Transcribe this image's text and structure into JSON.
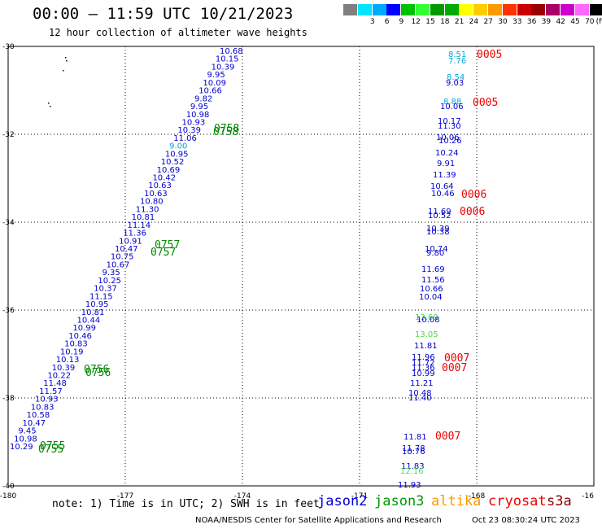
{
  "header": {
    "title": "00:00 – 11:59 UTC 10/21/2023",
    "subtitle": "12 hour collection of altimeter wave heights"
  },
  "legend": {
    "items": [
      {
        "label": "",
        "color": "#7f7f7f"
      },
      {
        "label": "3",
        "color": "#00e5ff"
      },
      {
        "label": "6",
        "color": "#00aaff"
      },
      {
        "label": "9",
        "color": "#0000ff"
      },
      {
        "label": "12",
        "color": "#00c000"
      },
      {
        "label": "15",
        "color": "#33ff33"
      },
      {
        "label": "18",
        "color": "#009900"
      },
      {
        "label": "21",
        "color": "#00aa00"
      },
      {
        "label": "24",
        "color": "#ffff00"
      },
      {
        "label": "27",
        "color": "#ffcc00"
      },
      {
        "label": "30",
        "color": "#ff9900"
      },
      {
        "label": "33",
        "color": "#ff3300"
      },
      {
        "label": "36",
        "color": "#cc0000"
      },
      {
        "label": "39",
        "color": "#990000"
      },
      {
        "label": "42",
        "color": "#aa0066"
      },
      {
        "label": "45",
        "color": "#cc00cc"
      },
      {
        "label": "70",
        "color": "#ff66ff"
      },
      {
        "label": "",
        "color": "#000000"
      }
    ],
    "unit": "(ft)"
  },
  "map": {
    "lon_range": [
      -180,
      -165
    ],
    "lat_range": [
      -40,
      -30
    ],
    "x_ticks": [
      "-180",
      "-177",
      "-174",
      "-171",
      "-168",
      "-16"
    ],
    "y_ticks": [
      "-30",
      "-32",
      "-34",
      "-36",
      "-38",
      "-40"
    ],
    "colors": {
      "blue": "#0000cc",
      "cyan": "#00aadd",
      "green": "#008800",
      "lightgreen": "#44dd44",
      "red": "#ee0000"
    },
    "track1": [
      {
        "v": "10.68",
        "c": "blue"
      },
      {
        "v": "10.15",
        "c": "blue"
      },
      {
        "v": "10.39",
        "c": "blue"
      },
      {
        "v": "9.95",
        "c": "blue"
      },
      {
        "v": "10.09",
        "c": "blue"
      },
      {
        "v": "10.66",
        "c": "blue"
      },
      {
        "v": "9.82",
        "c": "blue"
      },
      {
        "v": "9.95",
        "c": "blue"
      },
      {
        "v": "10.98",
        "c": "blue"
      },
      {
        "v": "10.93",
        "c": "blue"
      },
      {
        "v": "10.39",
        "c": "blue"
      },
      {
        "v": "11.06",
        "c": "blue"
      },
      {
        "v": "9.00",
        "c": "cyan"
      },
      {
        "v": "10.95",
        "c": "blue"
      },
      {
        "v": "10.52",
        "c": "blue"
      },
      {
        "v": "10.69",
        "c": "blue"
      },
      {
        "v": "10.42",
        "c": "blue"
      },
      {
        "v": "10.63",
        "c": "blue"
      },
      {
        "v": "10.63",
        "c": "blue"
      },
      {
        "v": "10.80",
        "c": "blue"
      },
      {
        "v": "11.30",
        "c": "blue"
      },
      {
        "v": "10.81",
        "c": "blue"
      },
      {
        "v": "11.14",
        "c": "blue"
      },
      {
        "v": "11.36",
        "c": "blue"
      },
      {
        "v": "10.91",
        "c": "blue"
      },
      {
        "v": "10.47",
        "c": "blue"
      },
      {
        "v": "10.75",
        "c": "blue"
      },
      {
        "v": "10.67",
        "c": "blue"
      },
      {
        "v": "9.35",
        "c": "blue"
      },
      {
        "v": "10.25",
        "c": "blue"
      },
      {
        "v": "10.37",
        "c": "blue"
      },
      {
        "v": "11.15",
        "c": "blue"
      },
      {
        "v": "10.95",
        "c": "blue"
      },
      {
        "v": "10.81",
        "c": "blue"
      },
      {
        "v": "10.44",
        "c": "blue"
      },
      {
        "v": "10.99",
        "c": "blue"
      },
      {
        "v": "10.46",
        "c": "blue"
      },
      {
        "v": "10.83",
        "c": "blue"
      },
      {
        "v": "10.19",
        "c": "blue"
      },
      {
        "v": "10.13",
        "c": "blue"
      },
      {
        "v": "10.39",
        "c": "blue"
      },
      {
        "v": "10.22",
        "c": "blue"
      },
      {
        "v": "11.48",
        "c": "blue"
      },
      {
        "v": "11.57",
        "c": "blue"
      },
      {
        "v": "10.93",
        "c": "blue"
      },
      {
        "v": "10.83",
        "c": "blue"
      },
      {
        "v": "10.58",
        "c": "blue"
      },
      {
        "v": "10.47",
        "c": "blue"
      },
      {
        "v": "9.45",
        "c": "blue"
      },
      {
        "v": "10.98",
        "c": "blue"
      },
      {
        "v": "10.29",
        "c": "blue"
      }
    ],
    "track2": [
      {
        "v": "8.51",
        "c": "cyan"
      },
      {
        "v": "7.76",
        "c": "cyan"
      },
      {
        "v": "8.54",
        "c": "cyan"
      },
      {
        "v": "9.03",
        "c": "blue"
      },
      {
        "v": "8.88",
        "c": "cyan"
      },
      {
        "v": "10.06",
        "c": "blue"
      },
      {
        "v": "10.17",
        "c": "blue"
      },
      {
        "v": "11.30",
        "c": "blue"
      },
      {
        "v": "10.06",
        "c": "blue"
      },
      {
        "v": "10.26",
        "c": "blue"
      },
      {
        "v": "10.24",
        "c": "blue"
      },
      {
        "v": "9.91",
        "c": "blue"
      },
      {
        "v": "11.39",
        "c": "blue"
      },
      {
        "v": "10.64",
        "c": "blue"
      },
      {
        "v": "10.46",
        "c": "blue"
      },
      {
        "v": "11.69",
        "c": "blue"
      },
      {
        "v": "10.52",
        "c": "blue"
      },
      {
        "v": "10.39",
        "c": "blue"
      },
      {
        "v": "10.38",
        "c": "blue"
      },
      {
        "v": "10.74",
        "c": "blue"
      },
      {
        "v": "9.80",
        "c": "blue"
      },
      {
        "v": "11.69",
        "c": "blue"
      },
      {
        "v": "11.56",
        "c": "blue"
      },
      {
        "v": "10.66",
        "c": "blue"
      },
      {
        "v": "10.04",
        "c": "blue"
      },
      {
        "v": "13.69",
        "c": "lightgreen"
      },
      {
        "v": "10.08",
        "c": "blue"
      },
      {
        "v": "13.05",
        "c": "lightgreen"
      },
      {
        "v": "11.81",
        "c": "blue"
      },
      {
        "v": "11.96",
        "c": "blue"
      },
      {
        "v": "11.72",
        "c": "blue"
      },
      {
        "v": "11.36",
        "c": "blue"
      },
      {
        "v": "10.99",
        "c": "blue"
      },
      {
        "v": "11.21",
        "c": "blue"
      },
      {
        "v": "10.48",
        "c": "blue"
      },
      {
        "v": "11.40",
        "c": "blue"
      },
      {
        "v": "11.81",
        "c": "blue"
      },
      {
        "v": "11.78",
        "c": "blue"
      },
      {
        "v": "10.76",
        "c": "blue"
      },
      {
        "v": "11.83",
        "c": "blue"
      },
      {
        "v": "12.16",
        "c": "lightgreen"
      },
      {
        "v": "11.93",
        "c": "blue"
      }
    ],
    "time_labels": [
      {
        "v": "0758",
        "c": "green"
      },
      {
        "v": "0758",
        "c": "green"
      },
      {
        "v": "0757",
        "c": "green"
      },
      {
        "v": "0757",
        "c": "green"
      },
      {
        "v": "0756",
        "c": "green"
      },
      {
        "v": "0756",
        "c": "green"
      },
      {
        "v": "0755",
        "c": "green"
      },
      {
        "v": "0755",
        "c": "green"
      },
      {
        "v": "0005",
        "c": "red"
      },
      {
        "v": "0005",
        "c": "red"
      },
      {
        "v": "0006",
        "c": "red"
      },
      {
        "v": "0006",
        "c": "red"
      },
      {
        "v": "0007",
        "c": "red"
      },
      {
        "v": "0007",
        "c": "red"
      },
      {
        "v": "0007",
        "c": "red"
      }
    ]
  },
  "footer": {
    "note": "note: 1) Time is in UTC; 2) SWH is in feet",
    "satellites": [
      {
        "name": "jason2",
        "color": "#0000dd"
      },
      {
        "name": "jason3",
        "color": "#009900"
      },
      {
        "name": "altika",
        "color": "#ff9900"
      },
      {
        "name": "cryosat",
        "color": "#ee0000"
      },
      {
        "name": "s3a",
        "color": "#880000"
      }
    ],
    "credit": "NOAA/NESDIS Center for Satellite Applications and Research",
    "timestamp": "Oct 23 08:30:24 UTC 2023"
  }
}
